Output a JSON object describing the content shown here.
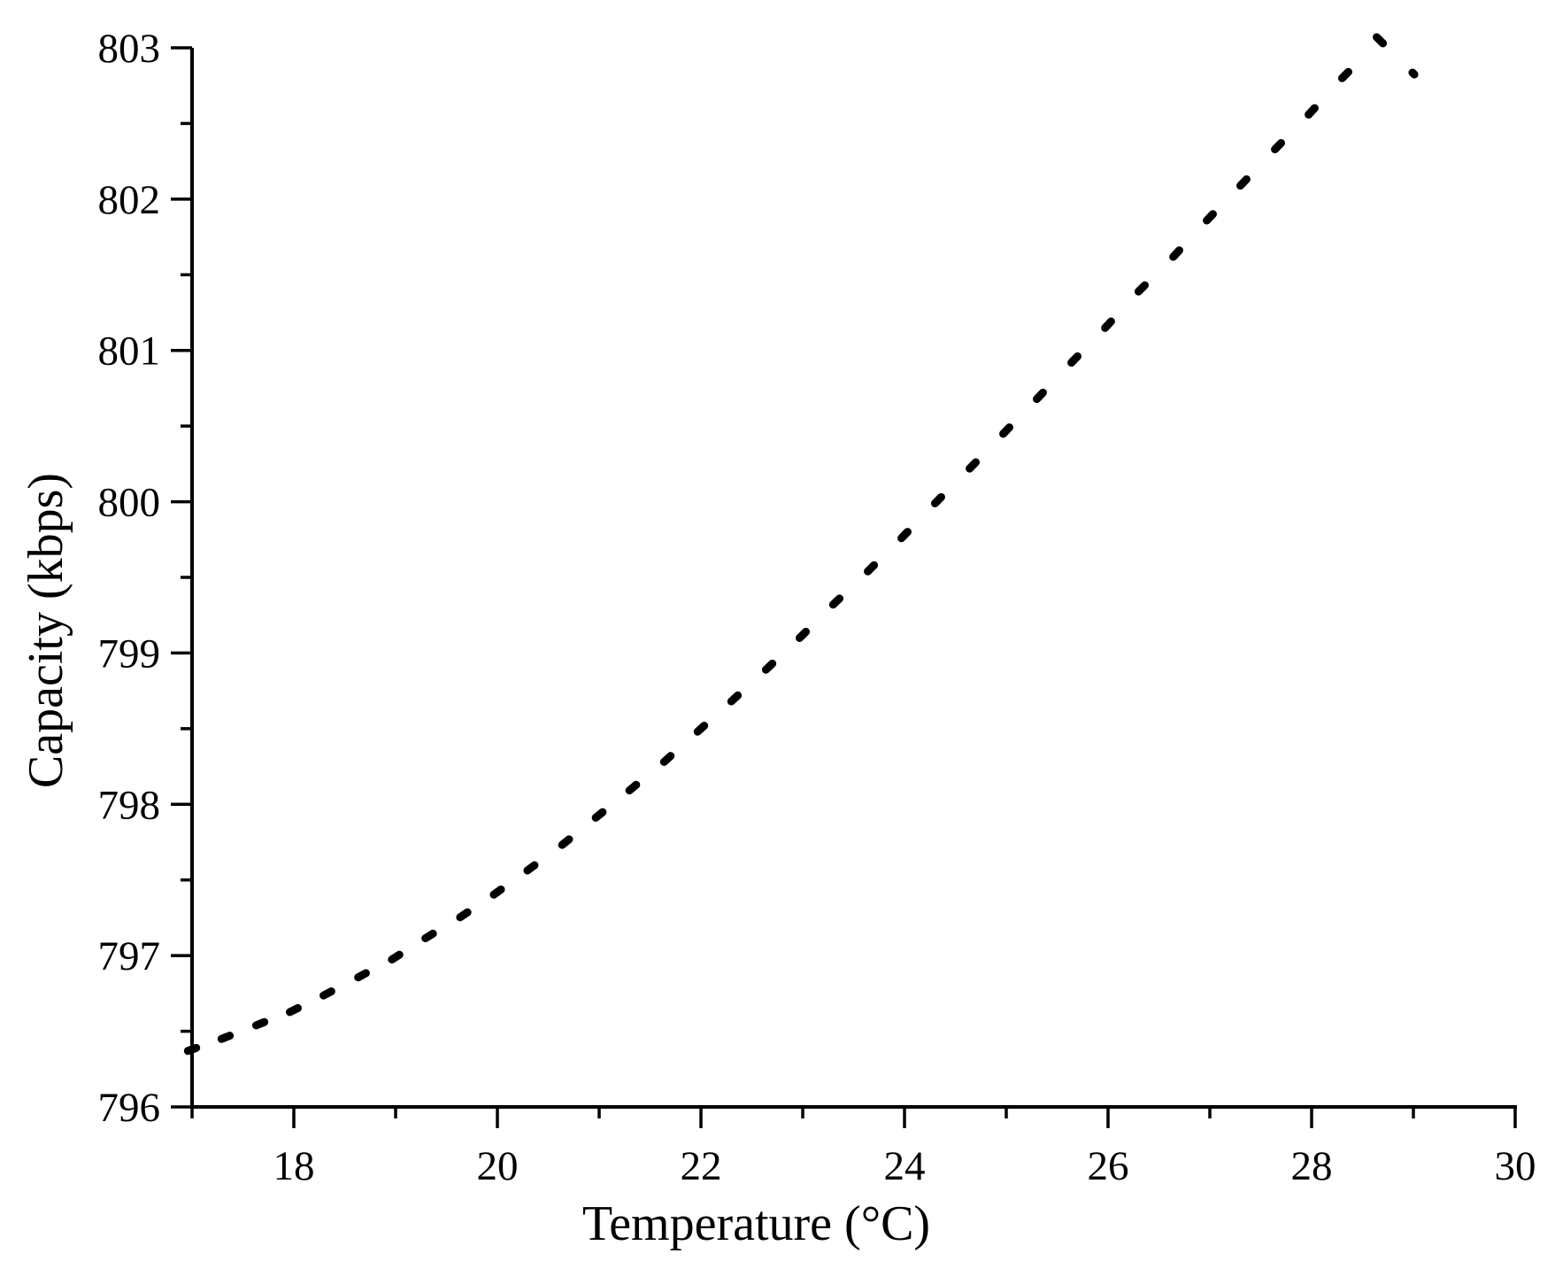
{
  "chart_data": {
    "type": "line",
    "title": "",
    "xlabel": "Temperature (°C)",
    "ylabel": "Capacity (kbps)",
    "xlim": [
      17,
      30
    ],
    "ylim": [
      796,
      803
    ],
    "x_ticks": [
      18,
      20,
      22,
      24,
      26,
      28,
      30
    ],
    "x_tick_labels": [
      "18",
      "20",
      "22",
      "24",
      "26",
      "28",
      "30"
    ],
    "y_ticks": [
      796,
      797,
      798,
      799,
      800,
      801,
      802,
      803
    ],
    "y_tick_labels": [
      "796",
      "797",
      "798",
      "799",
      "800",
      "801",
      "802",
      "803"
    ],
    "grid": false,
    "legend": "none",
    "line_style": "dotted",
    "colors": {
      "line": "#000000",
      "axis": "#000000"
    },
    "series": [
      {
        "x": [
          17.0,
          17.33,
          17.67,
          18.0,
          18.33,
          18.67,
          19.0,
          19.33,
          19.67,
          20.0,
          20.33,
          20.67,
          21.0,
          21.33,
          21.67,
          22.0,
          22.33,
          22.67,
          23.0,
          23.33,
          23.67,
          24.0,
          24.33,
          24.67,
          25.0,
          25.33,
          25.67,
          26.0,
          26.33,
          26.67,
          27.0,
          27.33,
          27.67,
          28.0,
          28.33,
          28.67,
          29.0
        ],
        "y": [
          796.38,
          796.46,
          796.55,
          796.64,
          796.75,
          796.87,
          796.99,
          797.13,
          797.27,
          797.42,
          797.58,
          797.75,
          797.93,
          798.11,
          798.3,
          798.5,
          798.7,
          798.91,
          799.12,
          799.34,
          799.56,
          799.78,
          800.01,
          800.24,
          800.47,
          800.7,
          800.94,
          801.17,
          801.41,
          801.64,
          801.88,
          802.11,
          802.35,
          802.58,
          802.82,
          803.05,
          802.83
        ]
      }
    ]
  }
}
